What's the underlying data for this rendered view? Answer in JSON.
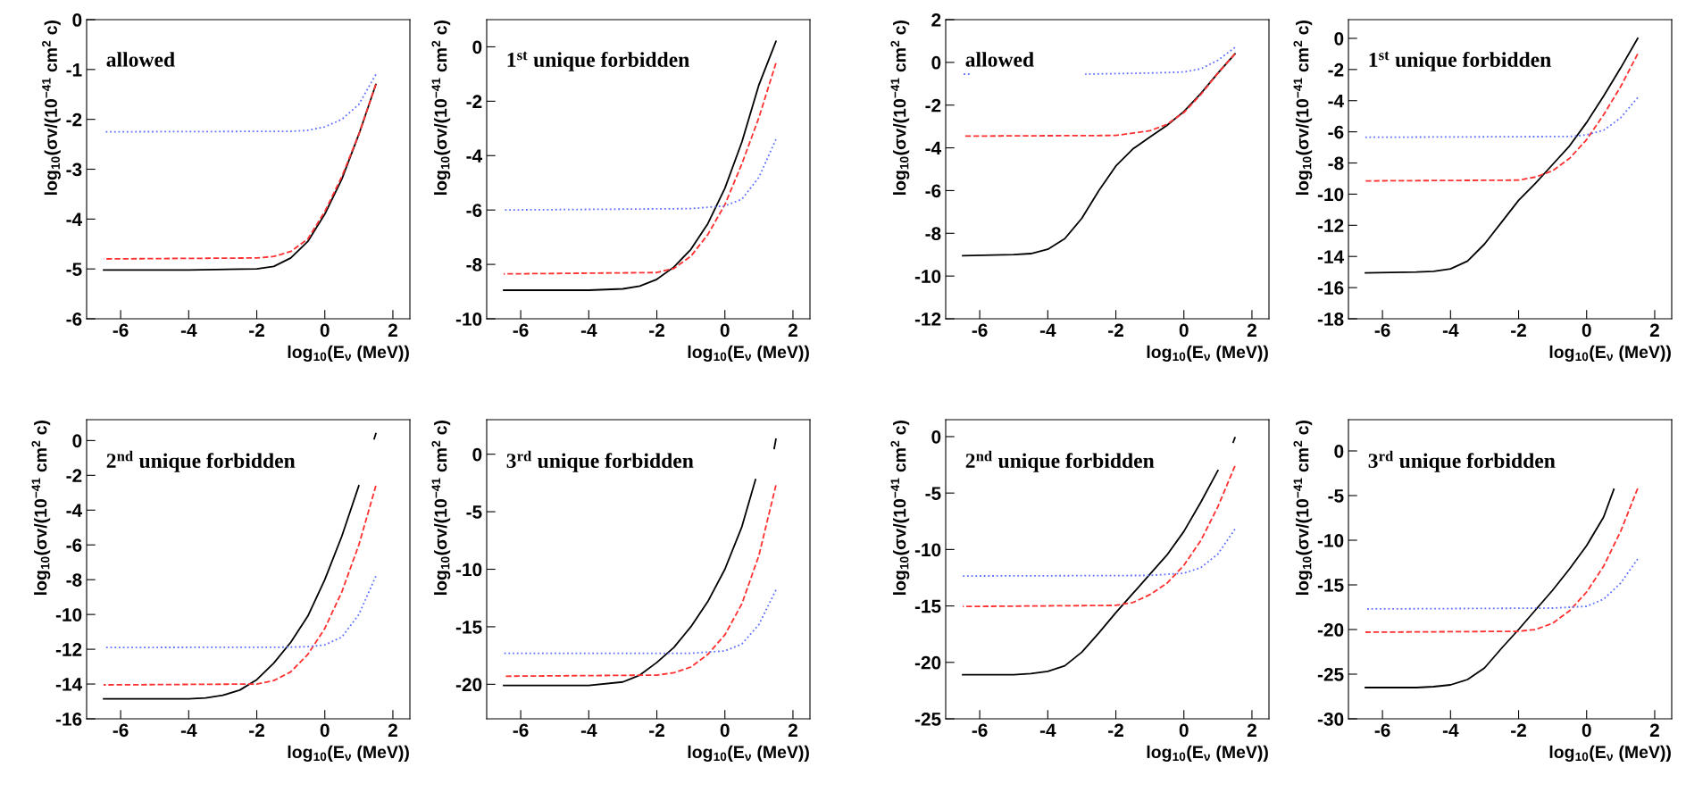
{
  "chart_data": [
    {
      "type": "line",
      "xlabel": "log$_{10}$(E$_{ν}$ (MeV))",
      "ylabel": "log$_{10}$(σv/(10$^{−41}$ cm$^{2}$ c)",
      "annotations": [
        "allowed"
      ],
      "xlim": [
        -7,
        2.5
      ],
      "ylim": [
        -6,
        0
      ],
      "xticks": [
        -6,
        -4,
        -2,
        0,
        2
      ],
      "yticks": [
        -6,
        -5,
        -4,
        -3,
        -2,
        -1,
        0
      ],
      "series": [
        {
          "color": "#000000",
          "line_style": "solid",
          "x": [
            -6.5,
            -4,
            -2,
            -1.5,
            -1,
            -0.5,
            0,
            0.5,
            1,
            1.5
          ],
          "values": [
            -5.02,
            -5.02,
            -5.0,
            -4.95,
            -4.78,
            -4.45,
            -3.9,
            -3.2,
            -2.3,
            -1.3
          ]
        },
        {
          "color": "#ff3030",
          "line_style": "dashed",
          "x": [
            -6.5,
            -2,
            -1.5,
            -1,
            -0.5,
            0,
            0.5,
            1,
            1.5
          ],
          "values": [
            -4.8,
            -4.78,
            -4.75,
            -4.65,
            -4.4,
            -3.85,
            -3.15,
            -2.3,
            -1.3
          ]
        },
        {
          "color": "#6070ff",
          "line_style": "dotted",
          "x": [
            -6.5,
            -1,
            -0.5,
            0,
            0.5,
            1,
            1.5
          ],
          "values": [
            -2.25,
            -2.24,
            -2.22,
            -2.15,
            -2.0,
            -1.7,
            -1.1
          ]
        }
      ]
    },
    {
      "type": "line",
      "xlabel": "log$_{10}$(E$_{ν}$ (MeV))",
      "ylabel": "log$_{10}$(σv/(10$^{−41}$ cm$^{2}$ c)",
      "annotations": [
        "1$^{st}$ unique forbidden"
      ],
      "xlim": [
        -7,
        2.5
      ],
      "ylim": [
        -10,
        1
      ],
      "xticks": [
        -6,
        -4,
        -2,
        0,
        2
      ],
      "yticks": [
        -10,
        -8,
        -6,
        -4,
        -2,
        0
      ],
      "series": [
        {
          "color": "#000000",
          "line_style": "solid",
          "x": [
            -6.5,
            -4,
            -3,
            -2.5,
            -2,
            -1.5,
            -1,
            -0.5,
            0,
            0.5,
            1,
            1.5
          ],
          "values": [
            -8.95,
            -8.95,
            -8.9,
            -8.8,
            -8.55,
            -8.1,
            -7.45,
            -6.5,
            -5.2,
            -3.5,
            -1.4,
            0.2
          ]
        },
        {
          "color": "#ff3030",
          "line_style": "dashed",
          "x": [
            -6.5,
            -2,
            -1.5,
            -1,
            -0.5,
            0,
            0.5,
            1,
            1.5
          ],
          "values": [
            -8.35,
            -8.3,
            -8.15,
            -7.7,
            -6.9,
            -5.8,
            -4.3,
            -2.6,
            -0.6
          ]
        },
        {
          "color": "#6070ff",
          "line_style": "dotted",
          "x": [
            -6.5,
            -1,
            0,
            0.5,
            1,
            1.5
          ],
          "values": [
            -6.0,
            -5.95,
            -5.85,
            -5.6,
            -4.8,
            -3.4
          ]
        }
      ]
    },
    {
      "type": "line",
      "xlabel": "log$_{10}$(E$_{ν}$ (MeV))",
      "ylabel": "log$_{10}$(σv/(10$^{−41}$ cm$^{2}$ c)",
      "annotations": [
        "allowed"
      ],
      "xlim": [
        -7,
        2.5
      ],
      "ylim": [
        -12,
        2
      ],
      "xticks": [
        -6,
        -4,
        -2,
        0,
        2
      ],
      "yticks": [
        -12,
        -10,
        -8,
        -6,
        -4,
        -2,
        0,
        2
      ],
      "series": [
        {
          "color": "#000000",
          "line_style": "solid",
          "x": [
            -6.5,
            -5,
            -4.5,
            -4,
            -3.5,
            -3,
            -2.5,
            -2,
            -1.5,
            -1,
            -0.5,
            0,
            0.5,
            1,
            1.5
          ],
          "values": [
            -9.05,
            -9.0,
            -8.95,
            -8.75,
            -8.25,
            -7.3,
            -6.0,
            -4.85,
            -4.05,
            -3.5,
            -2.95,
            -2.3,
            -1.45,
            -0.5,
            0.4
          ]
        },
        {
          "color": "#ff3030",
          "line_style": "dashed",
          "x": [
            -6.5,
            -2,
            -1,
            -0.5,
            0,
            0.5,
            1,
            1.5
          ],
          "values": [
            -3.45,
            -3.42,
            -3.2,
            -2.9,
            -2.35,
            -1.5,
            -0.5,
            0.4
          ]
        },
        {
          "color": "#6070ff",
          "line_style": "dotted",
          "x": [
            -6.5,
            -6.3,
            -6,
            -2.9,
            -1,
            0,
            0.5,
            1,
            1.5
          ],
          "values": [
            -0.55,
            -0.55,
            null,
            -0.55,
            -0.5,
            -0.45,
            -0.3,
            0.1,
            0.7
          ]
        }
      ]
    },
    {
      "type": "line",
      "xlabel": "log$_{10}$(E$_{ν}$ (MeV))",
      "ylabel": "log$_{10}$(σv/(10$^{−41}$ cm$^{2}$ c)",
      "annotations": [
        "1$^{st}$ unique forbidden"
      ],
      "xlim": [
        -7,
        2.5
      ],
      "ylim": [
        -18,
        1.2
      ],
      "xticks": [
        -6,
        -4,
        -2,
        0,
        2
      ],
      "yticks": [
        -18,
        -16,
        -14,
        -12,
        -10,
        -8,
        -6,
        -4,
        -2,
        0
      ],
      "series": [
        {
          "color": "#000000",
          "line_style": "solid",
          "x": [
            -6.5,
            -5,
            -4.5,
            -4,
            -3.5,
            -3,
            -2.5,
            -2,
            -1.5,
            -1,
            -0.5,
            0,
            0.5,
            1,
            1.5
          ],
          "values": [
            -15.05,
            -15.0,
            -14.95,
            -14.8,
            -14.3,
            -13.2,
            -11.8,
            -10.4,
            -9.3,
            -8.1,
            -6.9,
            -5.4,
            -3.7,
            -1.9,
            0
          ]
        },
        {
          "color": "#ff3030",
          "line_style": "dashed",
          "x": [
            -6.5,
            -2,
            -1.5,
            -1,
            -0.5,
            0,
            0.5,
            1,
            1.5
          ],
          "values": [
            -9.15,
            -9.1,
            -8.9,
            -8.5,
            -7.7,
            -6.5,
            -4.9,
            -3.1,
            -1.0
          ]
        },
        {
          "color": "#6070ff",
          "line_style": "dotted",
          "x": [
            -6.5,
            -0.5,
            0,
            0.5,
            1,
            1.5
          ],
          "values": [
            -6.35,
            -6.3,
            -6.2,
            -5.9,
            -5.1,
            -3.8
          ]
        }
      ]
    },
    {
      "type": "line",
      "xlabel": "log$_{10}$(E$_{ν}$ (MeV))",
      "ylabel": "log$_{10}$(σv/(10$^{−41}$ cm$^{2}$ c)",
      "annotations": [
        "2$^{nd}$ unique forbidden"
      ],
      "xlim": [
        -7,
        2.5
      ],
      "ylim": [
        -16,
        1.2
      ],
      "xticks": [
        -6,
        -4,
        -2,
        0,
        2
      ],
      "yticks": [
        -16,
        -14,
        -12,
        -10,
        -8,
        -6,
        -4,
        -2,
        0
      ],
      "series": [
        {
          "color": "#000000",
          "line_style": "solid",
          "x": [
            -6.5,
            -4,
            -3.5,
            -3,
            -2.5,
            -2,
            -1.5,
            -1,
            -0.5,
            0,
            0.5,
            1,
            1.2,
            1.45,
            1.5
          ],
          "values": [
            -14.85,
            -14.85,
            -14.8,
            -14.65,
            -14.35,
            -13.75,
            -12.8,
            -11.6,
            -10.1,
            -8.0,
            -5.5,
            -2.6,
            null,
            0.1,
            0.4
          ]
        },
        {
          "color": "#ff3030",
          "line_style": "dashed",
          "x": [
            -6.5,
            -2,
            -1.5,
            -1,
            -0.5,
            0,
            0.5,
            1,
            1.5
          ],
          "values": [
            -14.05,
            -14.0,
            -13.8,
            -13.3,
            -12.3,
            -10.8,
            -8.7,
            -6.0,
            -2.6
          ]
        },
        {
          "color": "#6070ff",
          "line_style": "dotted",
          "x": [
            -6.5,
            -1,
            -0.5,
            0,
            0.5,
            1,
            1.5
          ],
          "values": [
            -11.9,
            -11.88,
            -11.85,
            -11.75,
            -11.3,
            -10.0,
            -7.8
          ]
        }
      ]
    },
    {
      "type": "line",
      "xlabel": "log$_{10}$(E$_{ν}$ (MeV))",
      "ylabel": "log$_{10}$(σv/(10$^{−41}$ cm$^{2}$ c)",
      "annotations": [
        "3$^{rd}$ unique forbidden"
      ],
      "xlim": [
        -7,
        2.5
      ],
      "ylim": [
        -23,
        3
      ],
      "xticks": [
        -6,
        -4,
        -2,
        0,
        2
      ],
      "yticks": [
        -20,
        -15,
        -10,
        -5,
        0
      ],
      "series": [
        {
          "color": "#000000",
          "line_style": "solid",
          "x": [
            -6.5,
            -4,
            -3,
            -2.5,
            -2,
            -1.5,
            -1,
            -0.5,
            0,
            0.5,
            0.9,
            1.2,
            1.45,
            1.5
          ],
          "values": [
            -20.1,
            -20.1,
            -19.8,
            -19.2,
            -18.1,
            -16.8,
            -15.0,
            -12.8,
            -10.0,
            -6.3,
            -2.2,
            null,
            0.5,
            1.3
          ]
        },
        {
          "color": "#ff3030",
          "line_style": "dashed",
          "x": [
            -6.5,
            -2,
            -1.5,
            -1,
            -0.5,
            0,
            0.5,
            1,
            1.5
          ],
          "values": [
            -19.3,
            -19.2,
            -19.0,
            -18.5,
            -17.4,
            -15.7,
            -13.0,
            -8.8,
            -2.7
          ]
        },
        {
          "color": "#6070ff",
          "line_style": "dotted",
          "x": [
            -6.5,
            -1,
            0,
            0.5,
            1,
            1.5
          ],
          "values": [
            -17.3,
            -17.3,
            -17.1,
            -16.5,
            -14.8,
            -11.8
          ]
        }
      ]
    },
    {
      "type": "line",
      "xlabel": "log$_{10}$(E$_{ν}$ (MeV))",
      "ylabel": "log$_{10}$(σv/(10$^{−41}$ cm$^{2}$ c)",
      "annotations": [
        "2$^{nd}$ unique forbidden"
      ],
      "xlim": [
        -7,
        2.5
      ],
      "ylim": [
        -25,
        1.5
      ],
      "xticks": [
        -6,
        -4,
        -2,
        0,
        2
      ],
      "yticks": [
        -25,
        -20,
        -15,
        -10,
        -5,
        0
      ],
      "series": [
        {
          "color": "#000000",
          "line_style": "solid",
          "x": [
            -6.5,
            -5,
            -4.5,
            -4,
            -3.5,
            -3,
            -2.5,
            -2,
            -1.5,
            -1,
            -0.5,
            0,
            0.5,
            1,
            1.2,
            1.45,
            1.5
          ],
          "values": [
            -21.1,
            -21.1,
            -21.0,
            -20.8,
            -20.3,
            -19.1,
            -17.4,
            -15.6,
            -13.9,
            -12.2,
            -10.5,
            -8.4,
            -5.8,
            -3.0,
            null,
            -0.5,
            -0.1
          ]
        },
        {
          "color": "#ff3030",
          "line_style": "dashed",
          "x": [
            -6.5,
            -2,
            -1.5,
            -1,
            -0.5,
            0,
            0.5,
            1,
            1.5
          ],
          "values": [
            -15.05,
            -14.95,
            -14.7,
            -14.0,
            -13.0,
            -11.4,
            -9.2,
            -6.2,
            -2.6
          ]
        },
        {
          "color": "#6070ff",
          "line_style": "dotted",
          "x": [
            -6.5,
            -1,
            0,
            0.5,
            1,
            1.5
          ],
          "values": [
            -12.35,
            -12.3,
            -12.1,
            -11.6,
            -10.4,
            -8.2
          ]
        }
      ]
    },
    {
      "type": "line",
      "xlabel": "log$_{10}$(E$_{ν}$ (MeV))",
      "ylabel": "log$_{10}$(σv/(10$^{−41}$ cm$^{2}$ c)",
      "annotations": [
        "3$^{rd}$ unique forbidden"
      ],
      "xlim": [
        -7,
        2.5
      ],
      "ylim": [
        -30,
        3.5
      ],
      "xticks": [
        -6,
        -4,
        -2,
        0,
        2
      ],
      "yticks": [
        -30,
        -25,
        -20,
        -15,
        -10,
        -5,
        0
      ],
      "series": [
        {
          "color": "#000000",
          "line_style": "solid",
          "x": [
            -6.5,
            -5,
            -4.5,
            -4,
            -3.5,
            -3,
            -2.5,
            -2,
            -1.5,
            -1,
            -0.5,
            0,
            0.5,
            0.8
          ],
          "values": [
            -26.5,
            -26.5,
            -26.4,
            -26.2,
            -25.6,
            -24.3,
            -22.1,
            -20.0,
            -17.8,
            -15.6,
            -13.2,
            -10.6,
            -7.4,
            -4.3
          ]
        },
        {
          "color": "#ff3030",
          "line_style": "dashed",
          "x": [
            -6.5,
            -2,
            -1.5,
            -1,
            -0.5,
            0,
            0.5,
            1,
            1.5
          ],
          "values": [
            -20.3,
            -20.2,
            -20.0,
            -19.3,
            -17.9,
            -15.8,
            -12.9,
            -9.0,
            -4.2
          ]
        },
        {
          "color": "#6070ff",
          "line_style": "dotted",
          "x": [
            -6.5,
            -1,
            0,
            0.5,
            1,
            1.5
          ],
          "values": [
            -17.7,
            -17.6,
            -17.4,
            -16.6,
            -14.8,
            -12.1
          ]
        }
      ]
    }
  ]
}
